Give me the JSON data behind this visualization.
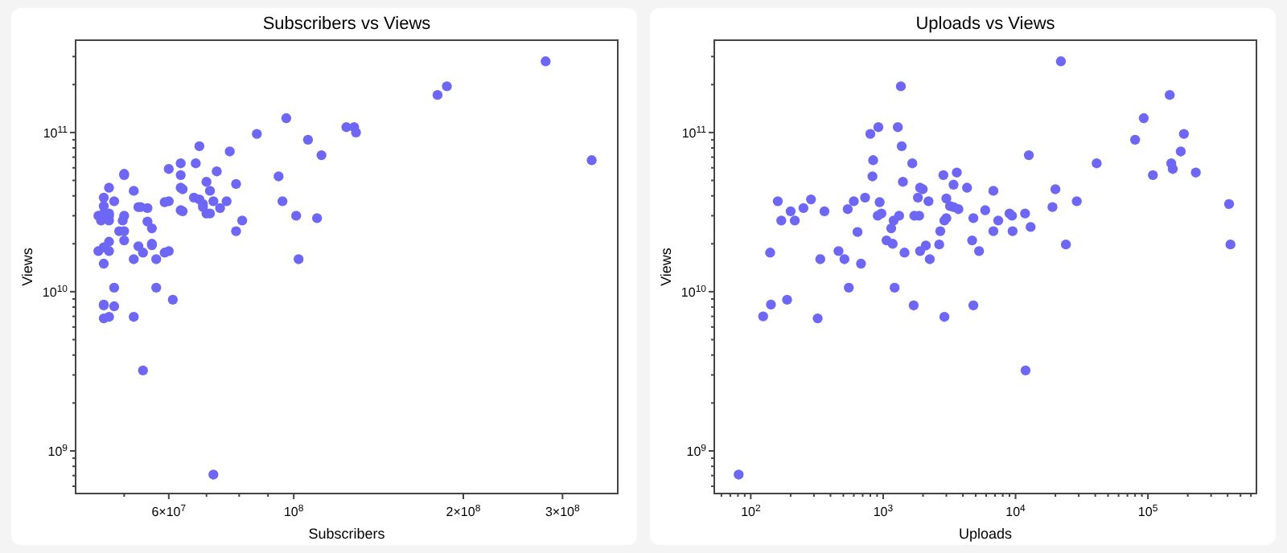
{
  "chart_data": [
    {
      "type": "scatter",
      "title": "Subscribers vs Views",
      "xlabel": "Subscribers",
      "ylabel": "Views",
      "log": "xy",
      "grid": false,
      "marker": "circle",
      "color": "#6e66f4",
      "xlim": [
        41000000.0,
        376000000.0
      ],
      "ylim": [
        540000000.0,
        380000000000.0
      ],
      "xticks": [
        {
          "value": 50000000.0,
          "label": null
        },
        {
          "value": 60000000.0,
          "label": "6×10$^{7}$"
        },
        {
          "value": 70000000.0,
          "label": null
        },
        {
          "value": 80000000.0,
          "label": null
        },
        {
          "value": 90000000.0,
          "label": null
        },
        {
          "value": 100000000.0,
          "label": "10$^{8}$"
        },
        {
          "value": 200000000.0,
          "label": "2×10$^{8}$"
        },
        {
          "value": 300000000.0,
          "label": "3×10$^{8}$"
        }
      ],
      "yticks": [
        {
          "value": 600000000.0,
          "label": null
        },
        {
          "value": 700000000.0,
          "label": null
        },
        {
          "value": 800000000.0,
          "label": null
        },
        {
          "value": 900000000.0,
          "label": null
        },
        {
          "value": 1000000000.0,
          "label": "10$^{9}$"
        },
        {
          "value": 2000000000.0,
          "label": null
        },
        {
          "value": 3000000000.0,
          "label": null
        },
        {
          "value": 4000000000.0,
          "label": null
        },
        {
          "value": 5000000000.0,
          "label": null
        },
        {
          "value": 6000000000.0,
          "label": null
        },
        {
          "value": 7000000000.0,
          "label": null
        },
        {
          "value": 8000000000.0,
          "label": null
        },
        {
          "value": 9000000000.0,
          "label": null
        },
        {
          "value": 10000000000.0,
          "label": "10$^{10}$"
        },
        {
          "value": 20000000000.0,
          "label": null
        },
        {
          "value": 30000000000.0,
          "label": null
        },
        {
          "value": 40000000000.0,
          "label": null
        },
        {
          "value": 50000000000.0,
          "label": null
        },
        {
          "value": 60000000000.0,
          "label": null
        },
        {
          "value": 70000000000.0,
          "label": null
        },
        {
          "value": 80000000000.0,
          "label": null
        },
        {
          "value": 90000000000.0,
          "label": null
        },
        {
          "value": 100000000000.0,
          "label": "10$^{11}$"
        },
        {
          "value": 200000000000.0,
          "label": null
        },
        {
          "value": 300000000000.0,
          "label": null
        }
      ],
      "x": [
        280000000.0,
        180000000.0,
        187000000.0,
        97000000.0,
        86000000.0,
        124000000.0,
        128000000.0,
        129000000.0,
        106000000.0,
        112000000.0,
        338000000.0,
        68000000.0,
        77000000.0,
        63000000.0,
        67000000.0,
        60000000.0,
        50000000.0,
        50000000.0,
        63000000.0,
        94000000.0,
        70000000.0,
        73000000.0,
        79000000.0,
        47000000.0,
        52000000.0,
        63000000.0,
        63500000.0,
        71000000.0,
        46000000.0,
        48000000.0,
        59000000.0,
        60000000.0,
        66500000.0,
        68000000.0,
        69000000.0,
        69000000.0,
        72000000.0,
        76000000.0,
        95500000.0,
        46000000.0,
        53000000.0,
        53500000.0,
        55000000.0,
        63000000.0,
        63500000.0,
        70000000.0,
        71000000.0,
        74000000.0,
        45000000.0,
        46000000.0,
        47000000.0,
        47000000.0,
        45500000.0,
        47000000.0,
        50000000.0,
        49700000.0,
        55000000.0,
        56000000.0,
        101000000.0,
        110000000.0,
        81000000.0,
        79000000.0,
        49000000.0,
        50000000.0,
        50000000.0,
        45000000.0,
        46000000.0,
        47000000.0,
        47000000.0,
        53000000.0,
        54000000.0,
        56000000.0,
        56000000.0,
        59000000.0,
        60000000.0,
        52000000.0,
        57000000.0,
        102000000.0,
        46000000.0,
        48000000.0,
        57000000.0,
        46000000.0,
        46000000.0,
        48000000.0,
        46000000.0,
        47000000.0,
        52000000.0,
        61000000.0,
        54000000.0,
        72000000.0
      ],
      "values": [
        280000000000.0,
        172000000000.0,
        195000000000.0,
        123000000000.0,
        98000000000.0,
        108000000000.0,
        108000000000.0,
        100000000000.0,
        90000000000.0,
        72000000000.0,
        67000000000.0,
        82000000000.0,
        76000000000.0,
        64000000000.0,
        64000000000.0,
        59000000000.0,
        54000000000.0,
        55000000000.0,
        54000000000.0,
        53000000000.0,
        49000000000.0,
        57000000000.0,
        47500000000.0,
        45000000000.0,
        43000000000.0,
        45000000000.0,
        44000000000.0,
        43000000000.0,
        39000000000.0,
        37000000000.0,
        36500000000.0,
        37000000000.0,
        39000000000.0,
        38000000000.0,
        35500000000.0,
        34000000000.0,
        37000000000.0,
        37000000000.0,
        37000000000.0,
        34500000000.0,
        34000000000.0,
        34000000000.0,
        33500000000.0,
        32500000000.0,
        32000000000.0,
        31000000000.0,
        31000000000.0,
        33500000000.0,
        30000000000.0,
        31000000000.0,
        31000000000.0,
        30000000000.0,
        28000000000.0,
        28000000000.0,
        30000000000.0,
        28000000000.0,
        27600000000.0,
        25000000000.0,
        30000000000.0,
        29000000000.0,
        28000000000.0,
        24000000000.0,
        24000000000.0,
        24000000000.0,
        21000000000.0,
        18000000000.0,
        19000000000.0,
        18000000000.0,
        20600000000.0,
        19300000000.0,
        17600000000.0,
        20000000000.0,
        19600000000.0,
        17600000000.0,
        18000000000.0,
        16000000000.0,
        16000000000.0,
        16000000000.0,
        15000000000.0,
        10600000000.0,
        10600000000.0,
        8200000000.0,
        8300000000.0,
        8100000000.0,
        6800000000.0,
        6950000000.0,
        6950000000.0,
        8900000000.0,
        3200000000.0,
        710000000.0
      ]
    },
    {
      "type": "scatter",
      "title": "Uploads vs Views",
      "xlabel": "Uploads",
      "ylabel": "Views",
      "log": "xy",
      "grid": false,
      "marker": "circle",
      "color": "#6e66f4",
      "xlim": [
        53,
        660000.0
      ],
      "ylim": [
        540000000.0,
        380000000000.0
      ],
      "xticks": [
        {
          "value": 60,
          "label": null
        },
        {
          "value": 70,
          "label": null
        },
        {
          "value": 80,
          "label": null
        },
        {
          "value": 90,
          "label": null
        },
        {
          "value": 100,
          "label": "10$^{2}$"
        },
        {
          "value": 200,
          "label": null
        },
        {
          "value": 300,
          "label": null
        },
        {
          "value": 400,
          "label": null
        },
        {
          "value": 500,
          "label": null
        },
        {
          "value": 600,
          "label": null
        },
        {
          "value": 700,
          "label": null
        },
        {
          "value": 800,
          "label": null
        },
        {
          "value": 900,
          "label": null
        },
        {
          "value": 1000,
          "label": "10$^{3}$"
        },
        {
          "value": 2000,
          "label": null
        },
        {
          "value": 3000,
          "label": null
        },
        {
          "value": 4000,
          "label": null
        },
        {
          "value": 5000,
          "label": null
        },
        {
          "value": 6000,
          "label": null
        },
        {
          "value": 7000,
          "label": null
        },
        {
          "value": 8000,
          "label": null
        },
        {
          "value": 9000,
          "label": null
        },
        {
          "value": 10000,
          "label": "10$^{4}$"
        },
        {
          "value": 20000,
          "label": null
        },
        {
          "value": 30000,
          "label": null
        },
        {
          "value": 40000,
          "label": null
        },
        {
          "value": 50000,
          "label": null
        },
        {
          "value": 60000,
          "label": null
        },
        {
          "value": 70000,
          "label": null
        },
        {
          "value": 80000,
          "label": null
        },
        {
          "value": 90000,
          "label": null
        },
        {
          "value": 100000,
          "label": "10$^{5}$"
        },
        {
          "value": 200000,
          "label": null
        },
        {
          "value": 300000,
          "label": null
        },
        {
          "value": 400000,
          "label": null
        },
        {
          "value": 500000,
          "label": null
        },
        {
          "value": 600000,
          "label": null
        }
      ],
      "yticks": [
        {
          "value": 600000000.0,
          "label": null
        },
        {
          "value": 700000000.0,
          "label": null
        },
        {
          "value": 800000000.0,
          "label": null
        },
        {
          "value": 900000000.0,
          "label": null
        },
        {
          "value": 1000000000.0,
          "label": "10$^{9}$"
        },
        {
          "value": 2000000000.0,
          "label": null
        },
        {
          "value": 3000000000.0,
          "label": null
        },
        {
          "value": 4000000000.0,
          "label": null
        },
        {
          "value": 5000000000.0,
          "label": null
        },
        {
          "value": 6000000000.0,
          "label": null
        },
        {
          "value": 7000000000.0,
          "label": null
        },
        {
          "value": 8000000000.0,
          "label": null
        },
        {
          "value": 9000000000.0,
          "label": null
        },
        {
          "value": 10000000000.0,
          "label": "10$^{10}$"
        },
        {
          "value": 20000000000.0,
          "label": null
        },
        {
          "value": 30000000000.0,
          "label": null
        },
        {
          "value": 40000000000.0,
          "label": null
        },
        {
          "value": 50000000000.0,
          "label": null
        },
        {
          "value": 60000000000.0,
          "label": null
        },
        {
          "value": 70000000000.0,
          "label": null
        },
        {
          "value": 80000000000.0,
          "label": null
        },
        {
          "value": 90000000000.0,
          "label": null
        },
        {
          "value": 100000000000.0,
          "label": "10$^{11}$"
        },
        {
          "value": 200000000000.0,
          "label": null
        },
        {
          "value": 300000000000.0,
          "label": null
        }
      ],
      "x": [
        22000.0,
        1360.0,
        146000.0,
        93000.0,
        920.0,
        1290.0,
        800.0,
        187000.0,
        80000.0,
        1380.0,
        12600.0,
        177000.0,
        840.0,
        1660.0,
        150000.0,
        41000.0,
        154000.0,
        109000.0,
        230000.0,
        830.0,
        2850.0,
        3600.0,
        1410.0,
        3400.0,
        1900.0,
        1990.0,
        4300.0,
        6800.0,
        20000.0,
        160.0,
        600.0,
        285.0,
        250.0,
        200.0,
        360.0,
        540.0,
        730.0,
        1830.0,
        940.0,
        2200.0,
        3000.0,
        29000.0,
        19000.0,
        410000.0,
        3200.0,
        3400.0,
        3700.0,
        5900.0,
        170.0,
        215.0,
        910.0,
        970.0,
        1320.0,
        1720.0,
        1870.0,
        4800.0,
        3000.0,
        2900.0,
        7400.0,
        9000.0,
        9400.0,
        11800.0,
        13000.0,
        1200.0,
        1150.0,
        2700.0,
        6800.0,
        9500.0,
        640.0,
        1060.0,
        1180.0,
        4700.0,
        5300.0,
        140.0,
        460.0,
        510.0,
        335.0,
        680.0,
        1450.0,
        1900.0,
        2100.0,
        2250.0,
        2650.0,
        24000.0,
        420000.0,
        550.0,
        1220.0,
        124.0,
        142.0,
        188.0,
        320.0,
        1700.0,
        2900.0,
        4800.0,
        11900.0,
        81
      ],
      "values": [
        280000000000.0,
        195000000000.0,
        172000000000.0,
        123000000000.0,
        108000000000.0,
        108000000000.0,
        98000000000.0,
        98000000000.0,
        90000000000.0,
        82000000000.0,
        72000000000.0,
        76000000000.0,
        67000000000.0,
        64000000000.0,
        64000000000.0,
        64000000000.0,
        59000000000.0,
        54000000000.0,
        56000000000.0,
        53000000000.0,
        54000000000.0,
        56000000000.0,
        49000000000.0,
        47000000000.0,
        45000000000.0,
        44000000000.0,
        45000000000.0,
        43000000000.0,
        44000000000.0,
        37000000000.0,
        37000000000.0,
        38000000000.0,
        33500000000.0,
        32000000000.0,
        32000000000.0,
        33000000000.0,
        39000000000.0,
        39000000000.0,
        36500000000.0,
        37000000000.0,
        38500000000.0,
        37000000000.0,
        34000000000.0,
        35500000000.0,
        34500000000.0,
        34000000000.0,
        33000000000.0,
        32500000000.0,
        28000000000.0,
        28000000000.0,
        30000000000.0,
        31000000000.0,
        30000000000.0,
        30000000000.0,
        30000000000.0,
        29000000000.0,
        29000000000.0,
        28000000000.0,
        28000000000.0,
        31000000000.0,
        30000000000.0,
        31000000000.0,
        25500000000.0,
        28000000000.0,
        25000000000.0,
        24000000000.0,
        24000000000.0,
        24000000000.0,
        23700000000.0,
        21000000000.0,
        20000000000.0,
        21000000000.0,
        18000000000.0,
        17600000000.0,
        18000000000.0,
        16000000000.0,
        16000000000.0,
        15000000000.0,
        17600000000.0,
        18000000000.0,
        19500000000.0,
        16000000000.0,
        19800000000.0,
        19800000000.0,
        19800000000.0,
        10600000000.0,
        10600000000.0,
        7000000000.0,
        8300000000.0,
        8900000000.0,
        6800000000.0,
        8200000000.0,
        6950000000.0,
        8200000000.0,
        3200000000.0,
        710000000.0
      ]
    }
  ]
}
